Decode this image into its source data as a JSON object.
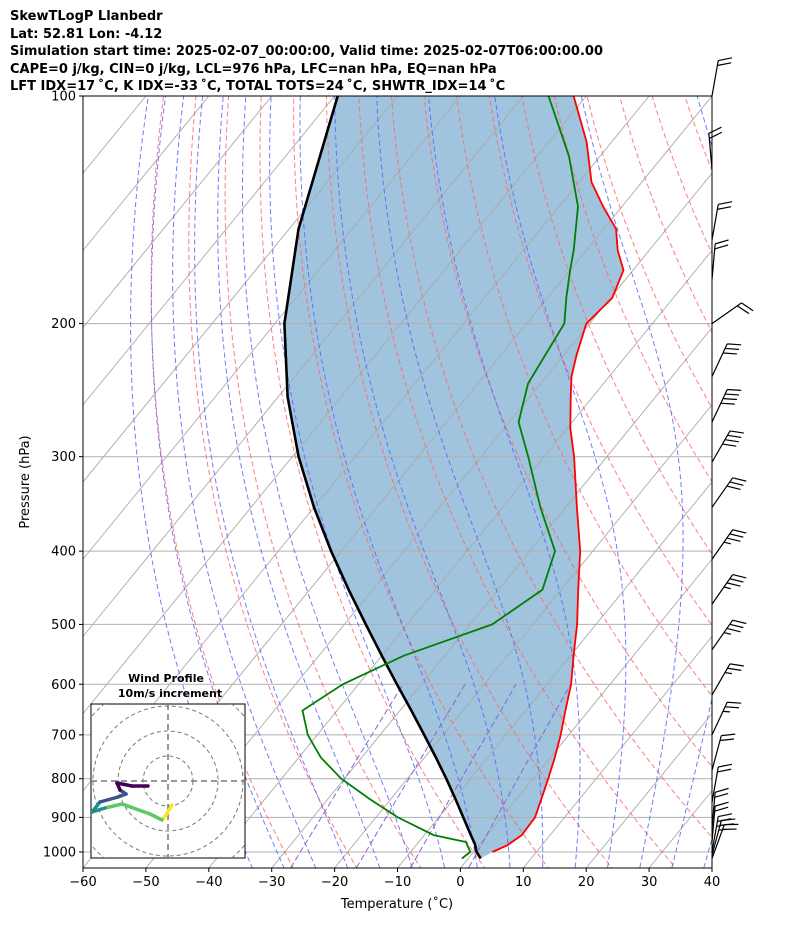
{
  "header": {
    "line1": "SkewTLogP Llanbedr",
    "line2": "Lat: 52.81   Lon: -4.12",
    "line3": "Simulation start time: 2025-02-07_00:00:00, Valid time: 2025-02-07T06:00:00.00",
    "line4": "CAPE=0 j/kg, CIN=0 j/kg, LCL=976 hPa, LFC=nan hPa, EQ=nan hPa",
    "line5": "LFT IDX=17 ˚C, K IDX=-33 ˚C, TOTAL TOTS=24 ˚C, SHWTR_IDX=14 ˚C"
  },
  "chart_data": {
    "type": "line",
    "xlabel": "Temperature (˚C)",
    "ylabel": "Pressure (hPa)",
    "xlim": [
      -60,
      40
    ],
    "ylim": [
      1050,
      100
    ],
    "yscale": "log",
    "skew": true,
    "grid": true,
    "x_ticks": [
      -60,
      -50,
      -40,
      -30,
      -20,
      -10,
      0,
      10,
      20,
      30,
      40
    ],
    "x_tick_labels": [
      "−60",
      "−50",
      "−40",
      "−30",
      "−20",
      "−10",
      "0",
      "10",
      "20",
      "30",
      "40"
    ],
    "y_ticks": [
      100,
      200,
      300,
      400,
      500,
      600,
      700,
      800,
      900,
      1000
    ],
    "y_tick_labels": [
      "100",
      "200",
      "300",
      "400",
      "500",
      "600",
      "700",
      "800",
      "900",
      "1000"
    ],
    "colors": {
      "temperature": "#ff0000",
      "dewpoint": "#008000",
      "parcel": "#000000",
      "fill": "#a0c4de",
      "dry_adiabat": "#ff6666",
      "moist_adiabat": "#5566ff",
      "mixing_ratio": "#8866cc",
      "isotherm": "#aaaaaa"
    },
    "series": [
      {
        "key": "temperature",
        "points": [
          [
            1000,
            3.0
          ],
          [
            980,
            4.5
          ],
          [
            950,
            5.5
          ],
          [
            900,
            5.3
          ],
          [
            850,
            3.9
          ],
          [
            800,
            2.4
          ],
          [
            750,
            0.7
          ],
          [
            700,
            -1.3
          ],
          [
            650,
            -3.7
          ],
          [
            600,
            -6.2
          ],
          [
            550,
            -9.5
          ],
          [
            500,
            -13.0
          ],
          [
            450,
            -17.3
          ],
          [
            400,
            -22.0
          ],
          [
            350,
            -28.2
          ],
          [
            300,
            -35.2
          ],
          [
            275,
            -39.5
          ],
          [
            250,
            -43.5
          ],
          [
            235,
            -46.0
          ],
          [
            220,
            -48.0
          ],
          [
            200,
            -50.5
          ],
          [
            185,
            -49.7
          ],
          [
            170,
            -51.5
          ],
          [
            160,
            -55.0
          ],
          [
            150,
            -58.0
          ],
          [
            140,
            -63.0
          ],
          [
            130,
            -68.0
          ],
          [
            115,
            -74.0
          ],
          [
            100,
            -82.0
          ]
        ]
      },
      {
        "key": "dewpoint",
        "points": [
          [
            1020,
            -1.0
          ],
          [
            1000,
            -0.5
          ],
          [
            970,
            -2.5
          ],
          [
            950,
            -8.5
          ],
          [
            900,
            -16.5
          ],
          [
            850,
            -23.5
          ],
          [
            800,
            -30.5
          ],
          [
            750,
            -36.5
          ],
          [
            700,
            -41.5
          ],
          [
            650,
            -45.5
          ],
          [
            600,
            -42.5
          ],
          [
            550,
            -36.5
          ],
          [
            500,
            -26.5
          ],
          [
            450,
            -23.0
          ],
          [
            400,
            -26.0
          ],
          [
            350,
            -34.0
          ],
          [
            300,
            -42.5
          ],
          [
            270,
            -48.5
          ],
          [
            240,
            -52.0
          ],
          [
            200,
            -54.0
          ],
          [
            185,
            -57.0
          ],
          [
            170,
            -60.0
          ],
          [
            160,
            -62.0
          ],
          [
            140,
            -67.0
          ],
          [
            120,
            -75.0
          ],
          [
            100,
            -86.0
          ]
        ]
      },
      {
        "key": "parcel",
        "points": [
          [
            1020,
            2.0
          ],
          [
            1000,
            0.5
          ],
          [
            976,
            -0.8
          ],
          [
            950,
            -2.6
          ],
          [
            900,
            -6.1
          ],
          [
            850,
            -9.8
          ],
          [
            800,
            -13.8
          ],
          [
            750,
            -18.2
          ],
          [
            700,
            -23.0
          ],
          [
            650,
            -28.2
          ],
          [
            600,
            -33.9
          ],
          [
            550,
            -40.0
          ],
          [
            500,
            -46.6
          ],
          [
            450,
            -53.8
          ],
          [
            400,
            -61.6
          ],
          [
            350,
            -70.0
          ],
          [
            300,
            -79.0
          ],
          [
            250,
            -88.5
          ],
          [
            200,
            -98.5
          ],
          [
            150,
            -108.5
          ],
          [
            100,
            -119.5
          ]
        ]
      }
    ],
    "inset": {
      "title": "Wind Profile",
      "subtitle": "10m/s increment",
      "colormap": [
        "#440154",
        "#3b528b",
        "#21918c",
        "#5ec962",
        "#fde725"
      ]
    }
  }
}
